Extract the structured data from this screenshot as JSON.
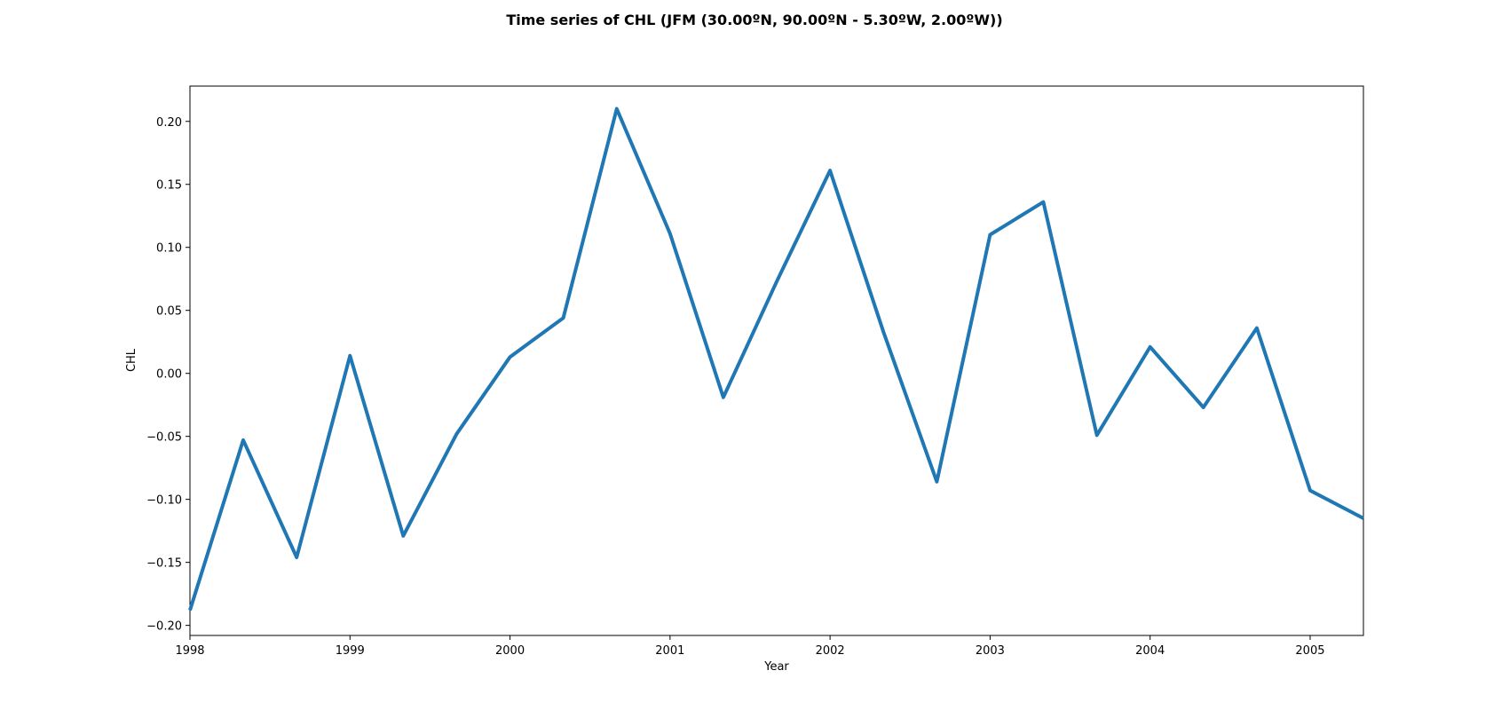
{
  "chart_data": {
    "type": "line",
    "title": "Time series of CHL (JFM (30.00ºN, 90.00ºN - 5.30ºW, 2.00ºW))",
    "xlabel": "Year",
    "ylabel": "CHL",
    "xlim": [
      1998,
      2005.333
    ],
    "ylim": [
      -0.208,
      0.228
    ],
    "xticks": [
      1998,
      1999,
      2000,
      2001,
      2002,
      2003,
      2004,
      2005
    ],
    "xtick_labels": [
      "1998",
      "1999",
      "2000",
      "2001",
      "2002",
      "2003",
      "2004",
      "2005"
    ],
    "yticks": [
      -0.2,
      -0.15,
      -0.1,
      -0.05,
      0.0,
      0.05,
      0.1,
      0.15,
      0.2
    ],
    "ytick_labels": [
      "−0.20",
      "−0.15",
      "−0.10",
      "−0.05",
      "0.00",
      "0.05",
      "0.10",
      "0.15",
      "0.20"
    ],
    "grid": false,
    "line_color": "#1f77b4",
    "series": [
      {
        "x": [
          1998.0,
          1998.333,
          1998.667,
          1999.0,
          1999.333,
          1999.667,
          2000.0,
          2000.333,
          2000.667,
          2001.0,
          2001.333,
          2001.667,
          2002.0,
          2002.333,
          2002.667,
          2003.0,
          2003.333,
          2003.667,
          2004.0,
          2004.333,
          2004.667,
          2005.0,
          2005.333
        ],
        "y": [
          -0.188,
          -0.053,
          -0.146,
          0.014,
          -0.129,
          -0.048,
          0.013,
          0.044,
          0.21,
          0.111,
          -0.019,
          0.073,
          0.161,
          0.033,
          -0.086,
          0.11,
          0.136,
          -0.049,
          0.021,
          -0.027,
          0.036,
          -0.093,
          -0.115
        ]
      }
    ]
  }
}
